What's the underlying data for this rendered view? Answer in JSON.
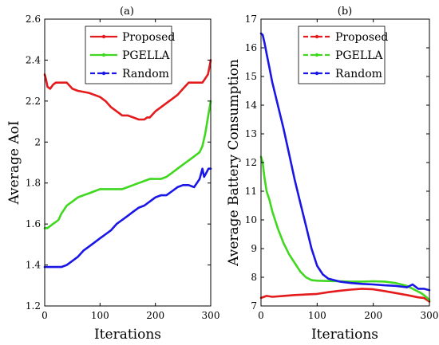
{
  "chart_data": [
    {
      "type": "line",
      "title": "(a)",
      "xlabel": "Iterations",
      "ylabel": "Average AoI",
      "xlim": [
        0,
        300
      ],
      "ylim": [
        1.2,
        2.6
      ],
      "xticks": [
        0,
        100,
        200,
        300
      ],
      "yticks": [
        1.2,
        1.4,
        1.6,
        1.8,
        2.0,
        2.2,
        2.4,
        2.6
      ],
      "ytick_labels": [
        "1.2",
        "1.4",
        "1.6",
        "1.8",
        "2",
        "2.2",
        "2.4",
        "2.6"
      ],
      "grid": false,
      "legend": "top-center",
      "series": [
        {
          "name": "Proposed",
          "color": "#e41a1c",
          "dash": "solid",
          "x": [
            0,
            2,
            5,
            10,
            15,
            20,
            30,
            40,
            50,
            60,
            80,
            100,
            110,
            120,
            130,
            140,
            150,
            160,
            170,
            180,
            185,
            190,
            200,
            210,
            220,
            230,
            240,
            250,
            260,
            270,
            280,
            285,
            290,
            295,
            298,
            300
          ],
          "y": [
            2.33,
            2.31,
            2.27,
            2.26,
            2.28,
            2.29,
            2.29,
            2.29,
            2.26,
            2.25,
            2.24,
            2.22,
            2.2,
            2.17,
            2.15,
            2.13,
            2.13,
            2.12,
            2.11,
            2.11,
            2.12,
            2.12,
            2.15,
            2.17,
            2.19,
            2.21,
            2.23,
            2.26,
            2.29,
            2.29,
            2.29,
            2.29,
            2.31,
            2.33,
            2.37,
            2.4
          ]
        },
        {
          "name": "PGELLA",
          "color": "#3fd81f",
          "dash": "solid",
          "x": [
            0,
            5,
            10,
            15,
            20,
            25,
            30,
            40,
            50,
            60,
            70,
            80,
            90,
            100,
            110,
            120,
            130,
            140,
            150,
            160,
            170,
            180,
            190,
            200,
            210,
            220,
            230,
            240,
            250,
            260,
            270,
            280,
            285,
            290,
            295,
            300
          ],
          "y": [
            1.58,
            1.58,
            1.59,
            1.6,
            1.61,
            1.62,
            1.65,
            1.69,
            1.71,
            1.73,
            1.74,
            1.75,
            1.76,
            1.77,
            1.77,
            1.77,
            1.77,
            1.77,
            1.78,
            1.79,
            1.8,
            1.81,
            1.82,
            1.82,
            1.82,
            1.83,
            1.85,
            1.87,
            1.89,
            1.91,
            1.93,
            1.95,
            1.98,
            2.04,
            2.12,
            2.2
          ]
        },
        {
          "name": "Random",
          "color": "#1a16e6",
          "dash": "dashed",
          "x": [
            0,
            10,
            20,
            30,
            40,
            50,
            60,
            70,
            80,
            90,
            100,
            110,
            120,
            130,
            140,
            150,
            160,
            170,
            180,
            190,
            200,
            210,
            220,
            230,
            240,
            250,
            260,
            270,
            275,
            280,
            285,
            288,
            292,
            296,
            300
          ],
          "y": [
            1.39,
            1.39,
            1.39,
            1.39,
            1.4,
            1.42,
            1.44,
            1.47,
            1.49,
            1.51,
            1.53,
            1.55,
            1.57,
            1.6,
            1.62,
            1.64,
            1.66,
            1.68,
            1.69,
            1.71,
            1.73,
            1.74,
            1.74,
            1.76,
            1.78,
            1.79,
            1.79,
            1.78,
            1.8,
            1.82,
            1.87,
            1.83,
            1.85,
            1.87,
            1.87
          ]
        }
      ]
    },
    {
      "type": "line",
      "title": "(b)",
      "xlabel": "Iterations",
      "ylabel": "Average Battery Consumption",
      "xlim": [
        0,
        300
      ],
      "ylim": [
        7,
        17
      ],
      "xticks": [
        0,
        100,
        200,
        300
      ],
      "yticks": [
        7,
        8,
        9,
        10,
        11,
        12,
        13,
        14,
        15,
        16,
        17
      ],
      "ytick_labels": [
        "7",
        "8",
        "9",
        "10",
        "11",
        "12",
        "13",
        "14",
        "15",
        "16",
        "17"
      ],
      "grid": false,
      "legend": "top-right",
      "series": [
        {
          "name": "Proposed",
          "color": "#e41a1c",
          "dash": "dashed",
          "x": [
            0,
            10,
            20,
            40,
            60,
            80,
            100,
            120,
            140,
            160,
            180,
            200,
            220,
            240,
            260,
            280,
            290,
            295,
            300
          ],
          "y": [
            7.28,
            7.35,
            7.32,
            7.35,
            7.38,
            7.4,
            7.42,
            7.48,
            7.53,
            7.57,
            7.6,
            7.58,
            7.52,
            7.45,
            7.38,
            7.3,
            7.28,
            7.22,
            7.15
          ]
        },
        {
          "name": "PGELLA",
          "color": "#3fd81f",
          "dash": "dashed",
          "x": [
            0,
            3,
            6,
            10,
            15,
            20,
            25,
            30,
            40,
            50,
            60,
            70,
            80,
            90,
            100,
            120,
            140,
            160,
            180,
            200,
            220,
            240,
            260,
            270,
            280,
            285,
            290,
            295,
            300
          ],
          "y": [
            12.2,
            12.0,
            11.5,
            11.0,
            10.7,
            10.3,
            10.0,
            9.7,
            9.2,
            8.8,
            8.5,
            8.2,
            8.0,
            7.9,
            7.88,
            7.87,
            7.86,
            7.85,
            7.85,
            7.86,
            7.85,
            7.8,
            7.7,
            7.6,
            7.5,
            7.45,
            7.38,
            7.3,
            7.2
          ]
        },
        {
          "name": "Random",
          "color": "#1a16e6",
          "dash": "dashed",
          "x": [
            0,
            3,
            6,
            10,
            15,
            20,
            30,
            40,
            50,
            60,
            70,
            80,
            90,
            100,
            110,
            120,
            140,
            160,
            180,
            200,
            220,
            240,
            260,
            270,
            280,
            290,
            300
          ],
          "y": [
            16.5,
            16.45,
            16.2,
            15.8,
            15.3,
            14.8,
            14.0,
            13.2,
            12.3,
            11.4,
            10.6,
            9.8,
            9.0,
            8.4,
            8.1,
            7.95,
            7.85,
            7.8,
            7.77,
            7.75,
            7.72,
            7.7,
            7.65,
            7.75,
            7.6,
            7.6,
            7.55
          ]
        }
      ]
    }
  ]
}
